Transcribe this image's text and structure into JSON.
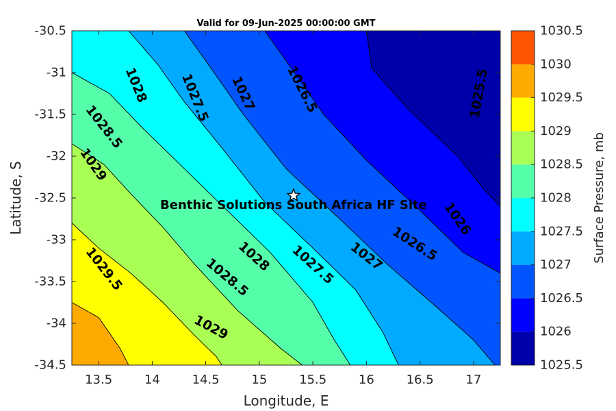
{
  "chart_data": {
    "type": "contour",
    "title": "Valid for 09-Jun-2025 00:00:00 GMT",
    "xlabel": "Longitude, E",
    "ylabel": "Latitude, S",
    "colorbar_label": "Surface Pressure, mb",
    "xlim": [
      13.25,
      17.25
    ],
    "ylim": [
      -34.5,
      -30.5
    ],
    "x_ticks": [
      "13.5",
      "14",
      "14.5",
      "15",
      "15.5",
      "16",
      "16.5",
      "17"
    ],
    "x_tick_values": [
      13.5,
      14,
      14.5,
      15,
      15.5,
      16,
      16.5,
      17
    ],
    "y_ticks": [
      "-30.5",
      "-31",
      "-31.5",
      "-32",
      "-32.5",
      "-33",
      "-33.5",
      "-34",
      "-34.5"
    ],
    "y_tick_values": [
      -30.5,
      -31,
      -31.5,
      -32,
      -32.5,
      -33,
      -33.5,
      -34,
      -34.5
    ],
    "colorbar_ticks": [
      "1030.5",
      "1030",
      "1029.5",
      "1029",
      "1028.5",
      "1028",
      "1027.5",
      "1027",
      "1026.5",
      "1026",
      "1025.5"
    ],
    "levels": [
      1025.5,
      1026,
      1026.5,
      1027,
      1027.5,
      1028,
      1028.5,
      1029,
      1029.5,
      1030,
      1030.5
    ],
    "level_colors": [
      "#0000AA",
      "#0000FF",
      "#0055FF",
      "#00AAFF",
      "#00FFFF",
      "#55FFAA",
      "#AAFF55",
      "#FFFF00",
      "#FFAA00",
      "#FF5500",
      "#FF0000"
    ],
    "band_boundaries": [
      {
        "level": 1029.5,
        "points": [
          [
            13.25,
            -33.75
          ],
          [
            13.5,
            -33.93
          ],
          [
            13.7,
            -34.3
          ],
          [
            13.78,
            -34.5
          ]
        ]
      },
      {
        "level": 1029,
        "points": [
          [
            13.25,
            -32.8
          ],
          [
            13.5,
            -33.1
          ],
          [
            13.8,
            -33.4
          ],
          [
            14.1,
            -33.75
          ],
          [
            14.4,
            -34.15
          ],
          [
            14.6,
            -34.4
          ],
          [
            14.65,
            -34.5
          ]
        ]
      },
      {
        "level": 1028.5,
        "points": [
          [
            13.25,
            -31.85
          ],
          [
            13.55,
            -32.1
          ],
          [
            13.8,
            -32.45
          ],
          [
            14.1,
            -32.85
          ],
          [
            14.4,
            -33.3
          ],
          [
            14.8,
            -33.85
          ],
          [
            15.2,
            -34.3
          ],
          [
            15.4,
            -34.5
          ]
        ]
      },
      {
        "level": 1028,
        "points": [
          [
            13.25,
            -31.0
          ],
          [
            13.6,
            -31.25
          ],
          [
            13.9,
            -31.65
          ],
          [
            14.3,
            -32.15
          ],
          [
            14.7,
            -32.65
          ],
          [
            15.1,
            -33.15
          ],
          [
            15.5,
            -33.75
          ],
          [
            15.7,
            -34.2
          ],
          [
            15.85,
            -34.5
          ]
        ]
      },
      {
        "level": 1027.5,
        "points": [
          [
            13.78,
            -30.5
          ],
          [
            14.05,
            -30.9
          ],
          [
            14.3,
            -31.35
          ],
          [
            14.65,
            -31.9
          ],
          [
            15.05,
            -32.55
          ],
          [
            15.5,
            -33.1
          ],
          [
            15.9,
            -33.6
          ],
          [
            16.15,
            -34.1
          ],
          [
            16.3,
            -34.5
          ]
        ]
      },
      {
        "level": 1027,
        "points": [
          [
            14.3,
            -30.5
          ],
          [
            14.55,
            -30.95
          ],
          [
            14.85,
            -31.5
          ],
          [
            15.25,
            -32.15
          ],
          [
            15.75,
            -32.75
          ],
          [
            16.2,
            -33.3
          ],
          [
            16.65,
            -33.8
          ],
          [
            17.0,
            -34.2
          ],
          [
            17.2,
            -34.5
          ],
          [
            17.25,
            -34.5
          ]
        ]
      },
      {
        "level": 1026.5,
        "points": [
          [
            15.05,
            -30.5
          ],
          [
            15.3,
            -30.95
          ],
          [
            15.6,
            -31.5
          ],
          [
            16.0,
            -32.05
          ],
          [
            16.5,
            -32.65
          ],
          [
            16.9,
            -33.15
          ],
          [
            17.25,
            -33.4
          ]
        ]
      },
      {
        "level": 1026,
        "points": [
          [
            16.0,
            -30.5
          ],
          [
            16.05,
            -30.95
          ],
          [
            16.4,
            -31.45
          ],
          [
            16.85,
            -32.0
          ],
          [
            17.1,
            -32.4
          ],
          [
            17.25,
            -32.6
          ]
        ]
      }
    ],
    "contour_labels": [
      {
        "text": "1028",
        "x": 13.85,
        "y": -31.15,
        "angle": 68
      },
      {
        "text": "1027.5",
        "x": 14.4,
        "y": -31.3,
        "angle": 68
      },
      {
        "text": "1027",
        "x": 14.85,
        "y": -31.25,
        "angle": 65
      },
      {
        "text": "1026.5",
        "x": 15.4,
        "y": -31.2,
        "angle": 63
      },
      {
        "text": "1025.5",
        "x": 17.05,
        "y": -31.25,
        "angle": -80
      },
      {
        "text": "1028.5",
        "x": 13.55,
        "y": -31.65,
        "angle": 52
      },
      {
        "text": "1029",
        "x": 13.45,
        "y": -32.1,
        "angle": 55
      },
      {
        "text": "1029.5",
        "x": 13.55,
        "y": -33.35,
        "angle": 52
      },
      {
        "text": "1028",
        "x": 14.95,
        "y": -33.2,
        "angle": 42
      },
      {
        "text": "1028.5",
        "x": 14.7,
        "y": -33.45,
        "angle": 40
      },
      {
        "text": "1027.5",
        "x": 15.5,
        "y": -33.3,
        "angle": 42
      },
      {
        "text": "1027",
        "x": 16.0,
        "y": -33.2,
        "angle": 38
      },
      {
        "text": "1026.5",
        "x": 16.45,
        "y": -33.05,
        "angle": 33
      },
      {
        "text": "1026",
        "x": 16.85,
        "y": -32.75,
        "angle": 55
      },
      {
        "text": "1029",
        "x": 14.55,
        "y": -34.05,
        "angle": 28
      }
    ],
    "site": {
      "name": "Benthic Solutions South Africa HF Site",
      "lon": 15.32,
      "lat": -32.47
    },
    "grid": false,
    "colorbar_position": "right"
  }
}
